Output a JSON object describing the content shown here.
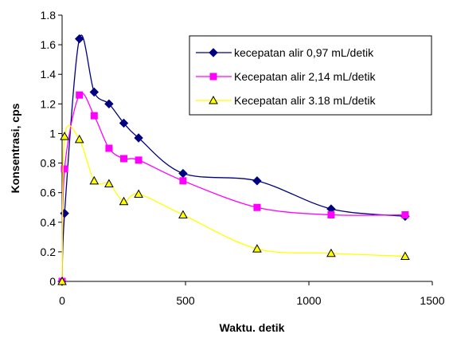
{
  "chart_data": {
    "type": "line",
    "title": "",
    "xlabel": "Waktu. detik",
    "ylabel": "Konsentrasi, cps",
    "xlim": [
      0,
      1500
    ],
    "ylim": [
      0,
      1.8
    ],
    "xticks": [
      "0",
      "500",
      "1000",
      "1500"
    ],
    "yticks": [
      "0",
      "0.2",
      "0.4",
      "0.6",
      "0.8",
      "1",
      "1.2",
      "1.4",
      "1.6",
      "1.8"
    ],
    "grid": false,
    "legend_position": "top-right",
    "series": [
      {
        "name": "kecepatan alir 0,97 mL/detik",
        "color": "#000080",
        "marker": "diamond",
        "x": [
          0,
          10,
          70,
          130,
          190,
          250,
          310,
          490,
          790,
          1090,
          1390
        ],
        "y": [
          0.0,
          0.46,
          1.64,
          1.28,
          1.2,
          1.07,
          0.97,
          0.73,
          0.68,
          0.49,
          0.44
        ]
      },
      {
        "name": "Kecepatan alir 2,14 mL/detik",
        "color": "#ff00ff",
        "marker": "square",
        "x": [
          0,
          10,
          70,
          130,
          190,
          250,
          310,
          490,
          790,
          1090,
          1390
        ],
        "y": [
          0.0,
          0.76,
          1.26,
          1.12,
          0.9,
          0.83,
          0.82,
          0.68,
          0.5,
          0.45,
          0.45
        ]
      },
      {
        "name": "Kecepatan alir 3.18 mL/detik",
        "color": "#ffff00",
        "marker": "triangle",
        "x": [
          0,
          10,
          70,
          130,
          190,
          250,
          310,
          490,
          790,
          1090,
          1390
        ],
        "y": [
          0.0,
          0.98,
          0.96,
          0.68,
          0.66,
          0.54,
          0.59,
          0.45,
          0.22,
          0.19,
          0.17
        ]
      }
    ]
  }
}
